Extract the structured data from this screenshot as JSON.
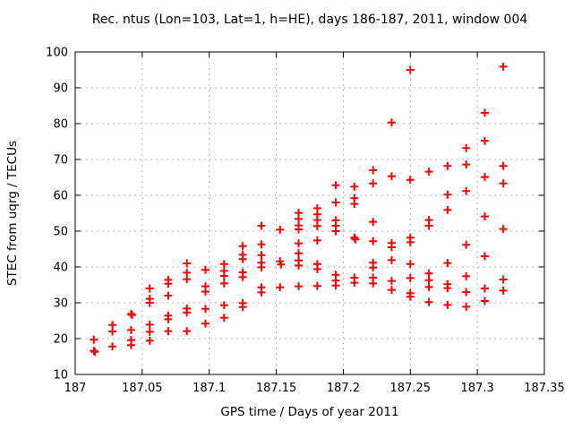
{
  "window": {
    "background": "#ffffff"
  },
  "chart_data": {
    "type": "scatter",
    "title": "Rec. ntus (Lon=103, Lat=1, h=HE), days 186-187, 2011, window 004",
    "xlabel": "GPS time / Days of year 2011",
    "ylabel": "STEC from uqrg / TECUs",
    "xlim": [
      187.0,
      187.35
    ],
    "ylim": [
      10,
      100
    ],
    "grid": true,
    "legend": "none",
    "marker": {
      "shape": "plus",
      "size": 9,
      "stroke_width": 2,
      "color": "#ff0000"
    },
    "grid_color": "#b0b0b0",
    "axis_color": "#000000",
    "xticks": [
      {
        "v": 187.0,
        "label": "187"
      },
      {
        "v": 187.05,
        "label": "187.05"
      },
      {
        "v": 187.1,
        "label": "187.1"
      },
      {
        "v": 187.15,
        "label": "187.15"
      },
      {
        "v": 187.2,
        "label": "187.2"
      },
      {
        "v": 187.25,
        "label": "187.25"
      },
      {
        "v": 187.3,
        "label": "187.3"
      },
      {
        "v": 187.35,
        "label": "187.35"
      }
    ],
    "yticks": [
      {
        "v": 10,
        "label": "10"
      },
      {
        "v": 20,
        "label": "20"
      },
      {
        "v": 30,
        "label": "30"
      },
      {
        "v": 40,
        "label": "40"
      },
      {
        "v": 50,
        "label": "50"
      },
      {
        "v": 60,
        "label": "60"
      },
      {
        "v": 70,
        "label": "70"
      },
      {
        "v": 80,
        "label": "80"
      },
      {
        "v": 90,
        "label": "90"
      },
      {
        "v": 100,
        "label": "100"
      }
    ],
    "points": [
      [
        187.0139,
        19.7
      ],
      [
        187.0139,
        16.6
      ],
      [
        187.0146,
        16.3
      ],
      [
        187.0278,
        23.8
      ],
      [
        187.0278,
        22.0
      ],
      [
        187.0278,
        17.8
      ],
      [
        187.0417,
        26.9
      ],
      [
        187.0424,
        26.6
      ],
      [
        187.0417,
        22.4
      ],
      [
        187.0417,
        19.6
      ],
      [
        187.0417,
        18.2
      ],
      [
        187.0556,
        34.0
      ],
      [
        187.0556,
        31.1
      ],
      [
        187.0556,
        30.0
      ],
      [
        187.0556,
        23.9
      ],
      [
        187.0556,
        21.9
      ],
      [
        187.0556,
        19.4
      ],
      [
        187.0694,
        36.4
      ],
      [
        187.0694,
        35.3
      ],
      [
        187.0694,
        32.0
      ],
      [
        187.0694,
        26.4
      ],
      [
        187.0694,
        25.4
      ],
      [
        187.0694,
        22.1
      ],
      [
        187.0833,
        41.0
      ],
      [
        187.0833,
        38.4
      ],
      [
        187.0833,
        36.6
      ],
      [
        187.0833,
        28.4
      ],
      [
        187.0833,
        27.3
      ],
      [
        187.0833,
        22.1
      ],
      [
        187.0972,
        39.2
      ],
      [
        187.0972,
        34.6
      ],
      [
        187.0972,
        33.1
      ],
      [
        187.0972,
        28.3
      ],
      [
        187.0972,
        24.2
      ],
      [
        187.1111,
        40.8
      ],
      [
        187.1111,
        38.9
      ],
      [
        187.1111,
        37.5
      ],
      [
        187.1111,
        35.4
      ],
      [
        187.1111,
        29.3
      ],
      [
        187.1111,
        25.8
      ],
      [
        187.125,
        45.8
      ],
      [
        187.125,
        43.4
      ],
      [
        187.125,
        42.2
      ],
      [
        187.125,
        38.5
      ],
      [
        187.125,
        37.2
      ],
      [
        187.125,
        29.9
      ],
      [
        187.125,
        28.8
      ],
      [
        187.1389,
        51.5
      ],
      [
        187.1389,
        46.3
      ],
      [
        187.1389,
        43.3
      ],
      [
        187.1389,
        41.2
      ],
      [
        187.1389,
        39.9
      ],
      [
        187.1389,
        34.3
      ],
      [
        187.1389,
        32.9
      ],
      [
        187.1528,
        50.4
      ],
      [
        187.1528,
        41.6
      ],
      [
        187.1535,
        40.7
      ],
      [
        187.1528,
        34.3
      ],
      [
        187.1667,
        55.1
      ],
      [
        187.1667,
        53.4
      ],
      [
        187.1667,
        51.6
      ],
      [
        187.1667,
        50.5
      ],
      [
        187.1667,
        46.6
      ],
      [
        187.1667,
        43.8
      ],
      [
        187.1667,
        41.8
      ],
      [
        187.1667,
        40.4
      ],
      [
        187.1667,
        34.6
      ],
      [
        187.1806,
        56.4
      ],
      [
        187.1806,
        54.7
      ],
      [
        187.1806,
        53.1
      ],
      [
        187.1806,
        51.4
      ],
      [
        187.1806,
        47.4
      ],
      [
        187.1806,
        40.8
      ],
      [
        187.1806,
        39.4
      ],
      [
        187.1806,
        34.7
      ],
      [
        187.1944,
        62.8
      ],
      [
        187.1944,
        58.0
      ],
      [
        187.1944,
        53.0
      ],
      [
        187.1944,
        51.5
      ],
      [
        187.1944,
        50.0
      ],
      [
        187.1944,
        37.8
      ],
      [
        187.1944,
        36.2
      ],
      [
        187.1944,
        34.8
      ],
      [
        187.2083,
        62.4
      ],
      [
        187.2083,
        59.2
      ],
      [
        187.2083,
        57.6
      ],
      [
        187.2083,
        48.2
      ],
      [
        187.209,
        47.7
      ],
      [
        187.2083,
        37.0
      ],
      [
        187.2083,
        35.6
      ],
      [
        187.2222,
        67.0
      ],
      [
        187.2222,
        63.3
      ],
      [
        187.2222,
        52.6
      ],
      [
        187.2222,
        47.2
      ],
      [
        187.2222,
        41.2
      ],
      [
        187.2222,
        39.8
      ],
      [
        187.2222,
        37.0
      ],
      [
        187.2222,
        35.4
      ],
      [
        187.2361,
        80.3
      ],
      [
        187.2361,
        65.3
      ],
      [
        187.2361,
        46.7
      ],
      [
        187.2361,
        45.5
      ],
      [
        187.2361,
        41.9
      ],
      [
        187.2361,
        36.1
      ],
      [
        187.2361,
        33.6
      ],
      [
        187.25,
        95.0
      ],
      [
        187.25,
        64.3
      ],
      [
        187.25,
        48.2
      ],
      [
        187.25,
        46.9
      ],
      [
        187.25,
        40.8
      ],
      [
        187.25,
        36.9
      ],
      [
        187.25,
        32.7
      ],
      [
        187.25,
        31.7
      ],
      [
        187.2639,
        66.6
      ],
      [
        187.2639,
        53.1
      ],
      [
        187.2639,
        51.5
      ],
      [
        187.2639,
        38.2
      ],
      [
        187.2639,
        36.3
      ],
      [
        187.2639,
        34.4
      ],
      [
        187.2639,
        30.2
      ],
      [
        187.2778,
        68.2
      ],
      [
        187.2778,
        60.2
      ],
      [
        187.2778,
        55.9
      ],
      [
        187.2778,
        41.1
      ],
      [
        187.2778,
        35.2
      ],
      [
        187.2778,
        34.1
      ],
      [
        187.2778,
        29.4
      ],
      [
        187.2917,
        73.2
      ],
      [
        187.2917,
        68.6
      ],
      [
        187.2917,
        61.2
      ],
      [
        187.2917,
        46.2
      ],
      [
        187.2917,
        37.4
      ],
      [
        187.2917,
        33.0
      ],
      [
        187.2917,
        28.9
      ],
      [
        187.3056,
        83.0
      ],
      [
        187.3056,
        75.2
      ],
      [
        187.3056,
        65.1
      ],
      [
        187.3056,
        54.1
      ],
      [
        187.3056,
        43.0
      ],
      [
        187.3056,
        34.0
      ],
      [
        187.3056,
        30.5
      ],
      [
        187.3194,
        95.9
      ],
      [
        187.3194,
        68.2
      ],
      [
        187.3194,
        63.3
      ],
      [
        187.3194,
        50.6
      ],
      [
        187.3194,
        36.5
      ],
      [
        187.3194,
        33.4
      ]
    ]
  }
}
